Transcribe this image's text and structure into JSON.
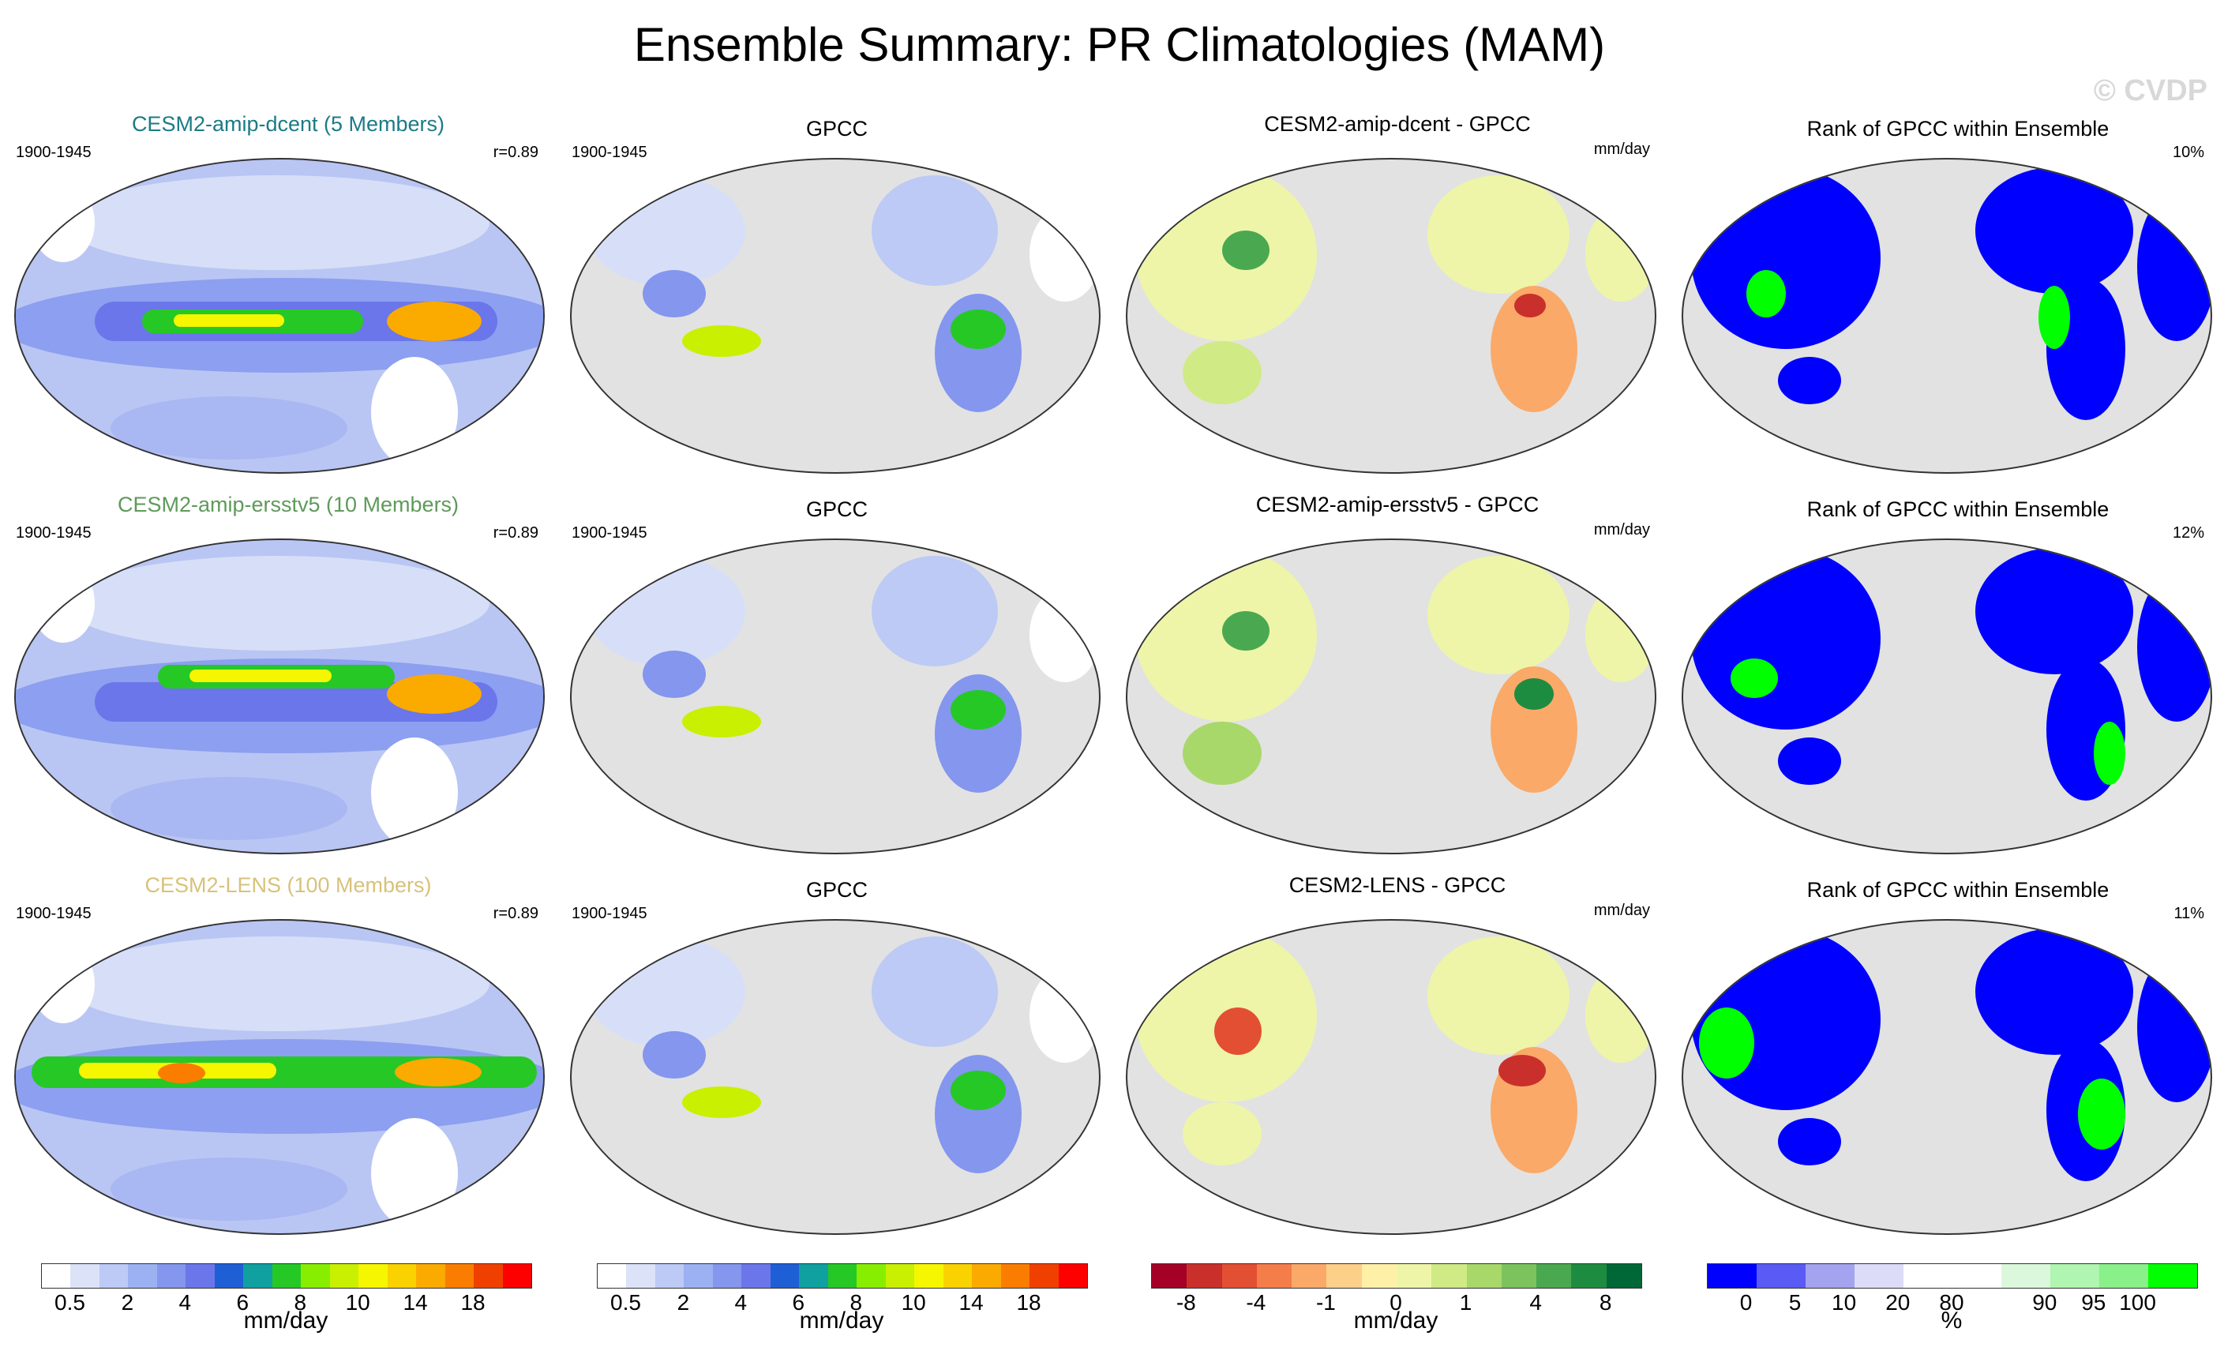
{
  "title": "Ensemble Summary: PR Climatologies (MAM)",
  "watermark": "© CVDP",
  "colors": {
    "row_title_1": "#1b7b86",
    "row_title_2": "#5e9a5a",
    "row_title_3": "#d8c27a",
    "land_gray": "#dcdcdc",
    "ocean_gray": "#e2e2e2"
  },
  "rows": [
    {
      "model_title": "CESM2-amip-dcent (5 Members)",
      "period": "1900-1945",
      "corr": "r=0.89",
      "obs_title": "GPCC",
      "obs_period": "1900-1945",
      "diff_title": "CESM2-amip-dcent - GPCC",
      "diff_units": "mm/day",
      "rank_title": "Rank of GPCC within Ensemble",
      "rank_pct": "10%"
    },
    {
      "model_title": "CESM2-amip-ersstv5 (10 Members)",
      "period": "1900-1945",
      "corr": "r=0.89",
      "obs_title": "GPCC",
      "obs_period": "1900-1945",
      "diff_title": "CESM2-amip-ersstv5 - GPCC",
      "diff_units": "mm/day",
      "rank_title": "Rank of GPCC within Ensemble",
      "rank_pct": "12%"
    },
    {
      "model_title": "CESM2-LENS (100 Members)",
      "period": "1900-1945",
      "corr": "r=0.89",
      "obs_title": "GPCC",
      "obs_period": "1900-1945",
      "diff_title": "CESM2-LENS - GPCC",
      "diff_units": "mm/day",
      "rank_title": "Rank of GPCC within Ensemble",
      "rank_pct": "11%"
    }
  ],
  "colorbars": [
    {
      "units": "mm/day",
      "colors": [
        "#ffffff",
        "#dce3f8",
        "#bccaf5",
        "#9cb1f2",
        "#8496ee",
        "#6b76ea",
        "#1f5fd6",
        "#11a0a0",
        "#26c826",
        "#88ee00",
        "#c8f000",
        "#f6f600",
        "#fad200",
        "#fbaa00",
        "#fb7d00",
        "#f04000",
        "#ff0000"
      ],
      "labels": [
        "0.5",
        "2",
        "4",
        "6",
        "8",
        "10",
        "14",
        "18"
      ]
    },
    {
      "units": "mm/day",
      "colors": [
        "#ffffff",
        "#dce3f8",
        "#bccaf5",
        "#9cb1f2",
        "#8496ee",
        "#6b76ea",
        "#1f5fd6",
        "#11a0a0",
        "#26c826",
        "#88ee00",
        "#c8f000",
        "#f6f600",
        "#fad200",
        "#fbaa00",
        "#fb7d00",
        "#f04000",
        "#ff0000"
      ],
      "labels": [
        "0.5",
        "2",
        "4",
        "6",
        "8",
        "10",
        "14",
        "18"
      ]
    },
    {
      "units": "mm/day",
      "colors": [
        "#a50026",
        "#c9302b",
        "#e34f33",
        "#f47d4a",
        "#faa968",
        "#fdd08a",
        "#fff0a8",
        "#eef5a8",
        "#d0ea86",
        "#a8d86a",
        "#7cc35e",
        "#4aa950",
        "#1e8c40",
        "#006837"
      ],
      "labels": [
        "-8",
        "-4",
        "-1",
        "0",
        "1",
        "4",
        "8"
      ]
    },
    {
      "units": "%",
      "colors": [
        "#0000ff",
        "#5a5af5",
        "#a3a3ef",
        "#dcdcf8",
        "#ffffff",
        "#ffffff",
        "#dcf8dc",
        "#b0f5b0",
        "#8af08a",
        "#00ff00"
      ],
      "labels": [
        "0",
        "5",
        "10",
        "20",
        "80",
        "90",
        "95",
        "100"
      ]
    }
  ]
}
